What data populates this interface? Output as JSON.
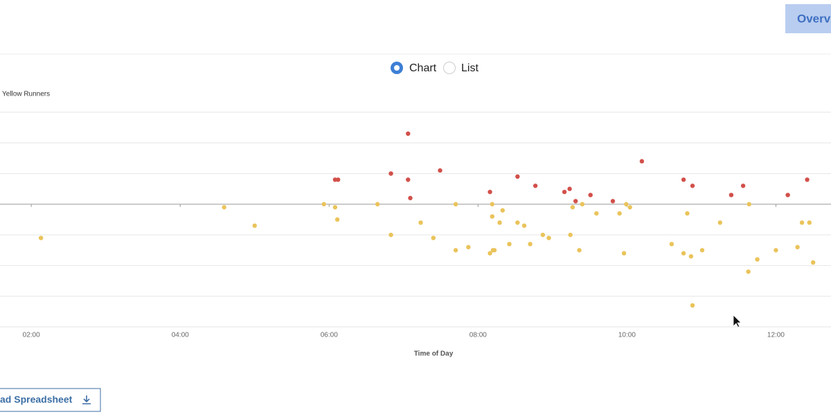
{
  "header": {
    "button": "Overvi"
  },
  "toggle": {
    "options": [
      "Chart",
      "List"
    ]
  },
  "chart_data": {
    "type": "scatter",
    "x_label": "Time of Day",
    "xlim": [
      1.58,
      12.74
    ],
    "xticks": [
      {
        "value": 2,
        "label": "02:00"
      },
      {
        "value": 4,
        "label": "04:00"
      },
      {
        "value": 6,
        "label": "06:00"
      },
      {
        "value": 8,
        "label": "08:00"
      },
      {
        "value": 10,
        "label": "10:00"
      },
      {
        "value": 12,
        "label": "12:00"
      }
    ],
    "ylim": [
      -4,
      3
    ],
    "yticks": [
      -4,
      -3,
      -2,
      -1,
      0,
      1,
      2,
      3
    ],
    "grid": true,
    "series": [
      {
        "color": "#d2504a",
        "x": [
          6.08,
          6.12,
          7.06,
          6.83,
          7.06,
          7.09,
          7.49,
          8.16,
          8.53,
          8.77,
          9.16,
          9.23,
          9.31,
          9.51,
          9.81,
          10.2,
          10.76,
          10.88,
          11.4,
          11.56,
          12.16,
          12.42
        ],
        "values": [
          0.8,
          0.8,
          2.3,
          1.0,
          0.8,
          0.2,
          1.1,
          0.4,
          0.9,
          0.6,
          0.4,
          0.5,
          0.1,
          0.3,
          0.1,
          1.4,
          0.8,
          0.6,
          0.3,
          0.6,
          0.3,
          0.8
        ]
      },
      {
        "name": "Yellow Runners",
        "color": "#eac35a",
        "x": [
          2.13,
          4.59,
          5.0,
          5.93,
          6.08,
          6.11,
          6.65,
          6.83,
          7.23,
          7.4,
          7.7,
          7.7,
          7.87,
          8.16,
          8.19,
          8.19,
          8.2,
          8.22,
          8.29,
          8.33,
          8.42,
          8.53,
          8.62,
          8.7,
          8.87,
          8.95,
          9.24,
          9.27,
          9.36,
          9.4,
          9.59,
          9.9,
          9.96,
          9.99,
          10.04,
          10.6,
          10.76,
          10.81,
          10.86,
          10.88,
          11.01,
          11.25,
          11.63,
          11.64,
          11.75,
          12.0,
          12.29,
          12.35,
          12.45,
          12.5
        ],
        "values": [
          -1.1,
          -0.1,
          -0.7,
          0,
          -0.1,
          -0.5,
          0,
          -1.0,
          -0.6,
          -1.1,
          0,
          -1.5,
          -1.4,
          -1.6,
          0,
          -0.4,
          -1.5,
          -1.5,
          -0.6,
          -0.2,
          -1.3,
          -0.6,
          -0.7,
          -1.3,
          -1.0,
          -1.1,
          -1.0,
          -0.1,
          -1.5,
          0,
          -0.3,
          -0.3,
          -1.6,
          0,
          -0.1,
          -1.3,
          -1.6,
          -0.3,
          -1.7,
          -3.3,
          -1.5,
          -0.6,
          -2.2,
          0,
          -1.8,
          -1.5,
          -1.4,
          -0.6,
          -0.6,
          -1.9
        ]
      }
    ]
  },
  "download": {
    "label": "ad Spreadsheet"
  }
}
